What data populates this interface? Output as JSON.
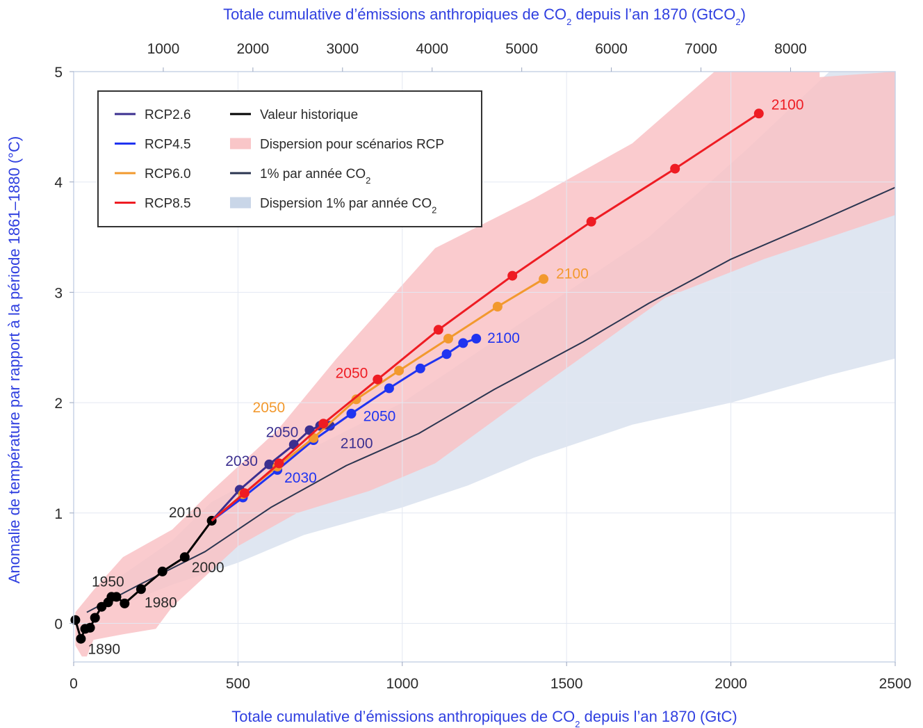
{
  "chart_data": {
    "type": "line",
    "xlabel": "Totale cumulative d’émissions anthropiques de CO",
    "xlabel_sub": "2",
    "xlabel_tail": " depuis l’an 1870 (GtC)",
    "x2label": "Totale cumulative d’émissions anthropiques de CO",
    "x2label_sub": "2",
    "x2label_mid": " depuis l’an 1870 (GtCO",
    "x2label_sub2": "2",
    "x2label_tail": ")",
    "ylabel": "Anomalie de température par rapport à la période 1861–1880 (°C)",
    "xlim": [
      0,
      2500
    ],
    "ylim": [
      -0.35,
      5
    ],
    "x_ticks": [
      0,
      500,
      1000,
      1500,
      2000,
      2500
    ],
    "y_ticks": [
      0,
      1,
      2,
      3,
      4,
      5
    ],
    "x2_ticks": [
      1000,
      2000,
      3000,
      4000,
      5000,
      6000,
      7000,
      8000
    ],
    "x2_to_x_factor": 3.667,
    "grid": true,
    "legend_position": "top-left",
    "legend": [
      {
        "label": "RCP2.6",
        "kind": "line",
        "color": "#3b2f8f"
      },
      {
        "label": "RCP4.5",
        "kind": "line",
        "color": "#2034f0"
      },
      {
        "label": "RCP6.0",
        "kind": "line",
        "color": "#f2992e"
      },
      {
        "label": "RCP8.5",
        "kind": "line",
        "color": "#ee1c23"
      },
      {
        "label": "Valeur historique",
        "kind": "line",
        "color": "#000000"
      },
      {
        "label": "Dispersion pour scénarios RCP",
        "kind": "patch",
        "color": "#f9c6c8"
      },
      {
        "label": "1% par année CO",
        "sub": "2",
        "kind": "line",
        "color": "#2b3550"
      },
      {
        "label": "Dispersion 1% par année CO",
        "sub": "2",
        "kind": "patch",
        "color": "#c9d6e8"
      }
    ],
    "bands": [
      {
        "name": "Dispersion 1% par année CO2",
        "color": "#dfe6f1",
        "upper": [
          [
            130,
            0.4
          ],
          [
            300,
            0.75
          ],
          [
            420,
            1.1
          ],
          [
            700,
            1.55
          ],
          [
            1000,
            2.0
          ],
          [
            1400,
            2.8
          ],
          [
            1750,
            3.5
          ],
          [
            2050,
            4.3
          ],
          [
            2300,
            5.0
          ],
          [
            2500,
            5.0
          ]
        ],
        "lower": [
          [
            2500,
            2.4
          ],
          [
            2300,
            2.25
          ],
          [
            2000,
            2.0
          ],
          [
            1700,
            1.8
          ],
          [
            1400,
            1.5
          ],
          [
            1200,
            1.25
          ],
          [
            1000,
            1.05
          ],
          [
            700,
            0.8
          ],
          [
            500,
            0.55
          ],
          [
            300,
            0.35
          ],
          [
            130,
            0.15
          ]
        ]
      },
      {
        "name": "Dispersion pour scénarios RCP",
        "color": "#f9c2c5",
        "upper": [
          [
            5,
            0.1
          ],
          [
            60,
            0.3
          ],
          [
            150,
            0.6
          ],
          [
            300,
            0.85
          ],
          [
            420,
            1.2
          ],
          [
            620,
            1.75
          ],
          [
            800,
            2.4
          ],
          [
            1100,
            3.4
          ],
          [
            1400,
            3.85
          ],
          [
            1700,
            4.35
          ],
          [
            1950,
            5.0
          ],
          [
            2270,
            5.0
          ],
          [
            2270,
            4.95
          ],
          [
            2500,
            5.0
          ]
        ],
        "lower": [
          [
            2500,
            3.7
          ],
          [
            2400,
            3.6
          ],
          [
            2100,
            3.3
          ],
          [
            1800,
            2.95
          ],
          [
            1400,
            2.1
          ],
          [
            1100,
            1.45
          ],
          [
            900,
            1.2
          ],
          [
            680,
            1.0
          ],
          [
            500,
            0.7
          ],
          [
            300,
            0.15
          ],
          [
            250,
            -0.05
          ],
          [
            150,
            -0.1
          ],
          [
            60,
            -0.15
          ],
          [
            40,
            -0.3
          ],
          [
            25,
            -0.3
          ],
          [
            5,
            -0.2
          ]
        ]
      }
    ],
    "series": [
      {
        "name": "1% par année CO2",
        "color": "#2b3550",
        "marker": false,
        "width": 2,
        "points": [
          [
            40,
            0.1
          ],
          [
            200,
            0.35
          ],
          [
            400,
            0.65
          ],
          [
            600,
            1.05
          ],
          [
            830,
            1.43
          ],
          [
            1050,
            1.72
          ],
          [
            1280,
            2.12
          ],
          [
            1550,
            2.55
          ],
          [
            1750,
            2.9
          ],
          [
            2000,
            3.3
          ],
          [
            2250,
            3.62
          ],
          [
            2500,
            3.95
          ]
        ]
      },
      {
        "name": "Valeur historique",
        "color": "#000000",
        "marker": true,
        "width": 3,
        "points": [
          [
            5,
            0.03
          ],
          [
            22,
            -0.14
          ],
          [
            35,
            -0.05
          ],
          [
            50,
            -0.04
          ],
          [
            65,
            0.05
          ],
          [
            85,
            0.15
          ],
          [
            105,
            0.19
          ],
          [
            115,
            0.24
          ],
          [
            130,
            0.24
          ],
          [
            155,
            0.18
          ],
          [
            205,
            0.31
          ],
          [
            270,
            0.47
          ],
          [
            338,
            0.6
          ],
          [
            420,
            0.93
          ]
        ]
      },
      {
        "name": "RCP2.6",
        "color": "#3b2f8f",
        "marker": true,
        "width": 3,
        "points": [
          [
            420,
            0.93
          ],
          [
            505,
            1.21
          ],
          [
            595,
            1.44
          ],
          [
            670,
            1.62
          ],
          [
            718,
            1.75
          ],
          [
            750,
            1.79
          ],
          [
            765,
            1.8
          ],
          [
            780,
            1.79
          ]
        ]
      },
      {
        "name": "RCP4.5",
        "color": "#2034f0",
        "marker": true,
        "width": 3,
        "points": [
          [
            420,
            0.93
          ],
          [
            515,
            1.14
          ],
          [
            620,
            1.39
          ],
          [
            730,
            1.66
          ],
          [
            845,
            1.9
          ],
          [
            960,
            2.13
          ],
          [
            1055,
            2.31
          ],
          [
            1135,
            2.44
          ],
          [
            1185,
            2.54
          ],
          [
            1225,
            2.58
          ]
        ]
      },
      {
        "name": "RCP6.0",
        "color": "#f2992e",
        "marker": true,
        "width": 3,
        "points": [
          [
            420,
            0.93
          ],
          [
            515,
            1.17
          ],
          [
            620,
            1.42
          ],
          [
            730,
            1.68
          ],
          [
            860,
            2.03
          ],
          [
            990,
            2.29
          ],
          [
            1140,
            2.58
          ],
          [
            1290,
            2.87
          ],
          [
            1430,
            3.12
          ]
        ]
      },
      {
        "name": "RCP8.5",
        "color": "#ee1c23",
        "marker": true,
        "width": 3,
        "points": [
          [
            420,
            0.93
          ],
          [
            520,
            1.18
          ],
          [
            625,
            1.45
          ],
          [
            760,
            1.81
          ],
          [
            925,
            2.21
          ],
          [
            1110,
            2.66
          ],
          [
            1335,
            3.15
          ],
          [
            1575,
            3.64
          ],
          [
            1830,
            4.12
          ],
          [
            2085,
            4.62
          ]
        ]
      }
    ],
    "annotations": [
      {
        "text": "2100",
        "x": 2085,
        "y": 4.62,
        "dx": 18,
        "dy": -6,
        "color": "#ee1c23",
        "anchor": "start"
      },
      {
        "text": "2100",
        "x": 1430,
        "y": 3.12,
        "dx": 18,
        "dy": -1,
        "color": "#f2992e",
        "anchor": "start"
      },
      {
        "text": "2100",
        "x": 1225,
        "y": 2.58,
        "dx": 16,
        "dy": 6,
        "color": "#2034f0",
        "anchor": "start"
      },
      {
        "text": "2050",
        "x": 925,
        "y": 2.21,
        "dx": -14,
        "dy": -2,
        "color": "#ee1c23",
        "anchor": "end"
      },
      {
        "text": "2050",
        "x": 860,
        "y": 2.03,
        "dx": 10,
        "dy": 31,
        "color": "#2034f0",
        "anchor": "start"
      },
      {
        "text": "2050",
        "x": 745,
        "y": 1.8,
        "dx": -48,
        "dy": -18,
        "color": "#f2992e",
        "anchor": "end"
      },
      {
        "text": "2050",
        "x": 705,
        "y": 1.75,
        "dx": -10,
        "dy": 10,
        "color": "#3b2f8f",
        "anchor": "end"
      },
      {
        "text": "2100",
        "x": 780,
        "y": 1.79,
        "dx": 15,
        "dy": 32,
        "color": "#3b2f8f",
        "anchor": "start"
      },
      {
        "text": "2030",
        "x": 590,
        "y": 1.44,
        "dx": -14,
        "dy": 2,
        "color": "#3b2f8f",
        "anchor": "end"
      },
      {
        "text": "2030",
        "x": 620,
        "y": 1.39,
        "dx": 10,
        "dy": 18,
        "color": "#2034f0",
        "anchor": "start"
      },
      {
        "text": "2010",
        "x": 420,
        "y": 0.93,
        "dx": -15,
        "dy": -5,
        "color": "#2a2a2a",
        "anchor": "end"
      },
      {
        "text": "2000",
        "x": 338,
        "y": 0.6,
        "dx": 10,
        "dy": 22,
        "color": "#2a2a2a",
        "anchor": "start"
      },
      {
        "text": "1980",
        "x": 205,
        "y": 0.31,
        "dx": 5,
        "dy": 26,
        "color": "#2a2a2a",
        "anchor": "start"
      },
      {
        "text": "1950",
        "x": 115,
        "y": 0.24,
        "dx": -5,
        "dy": -15,
        "color": "#2a2a2a",
        "anchor": "middle"
      },
      {
        "text": "1890",
        "x": 22,
        "y": -0.14,
        "dx": 10,
        "dy": 22,
        "color": "#2a2a2a",
        "anchor": "start"
      }
    ]
  }
}
